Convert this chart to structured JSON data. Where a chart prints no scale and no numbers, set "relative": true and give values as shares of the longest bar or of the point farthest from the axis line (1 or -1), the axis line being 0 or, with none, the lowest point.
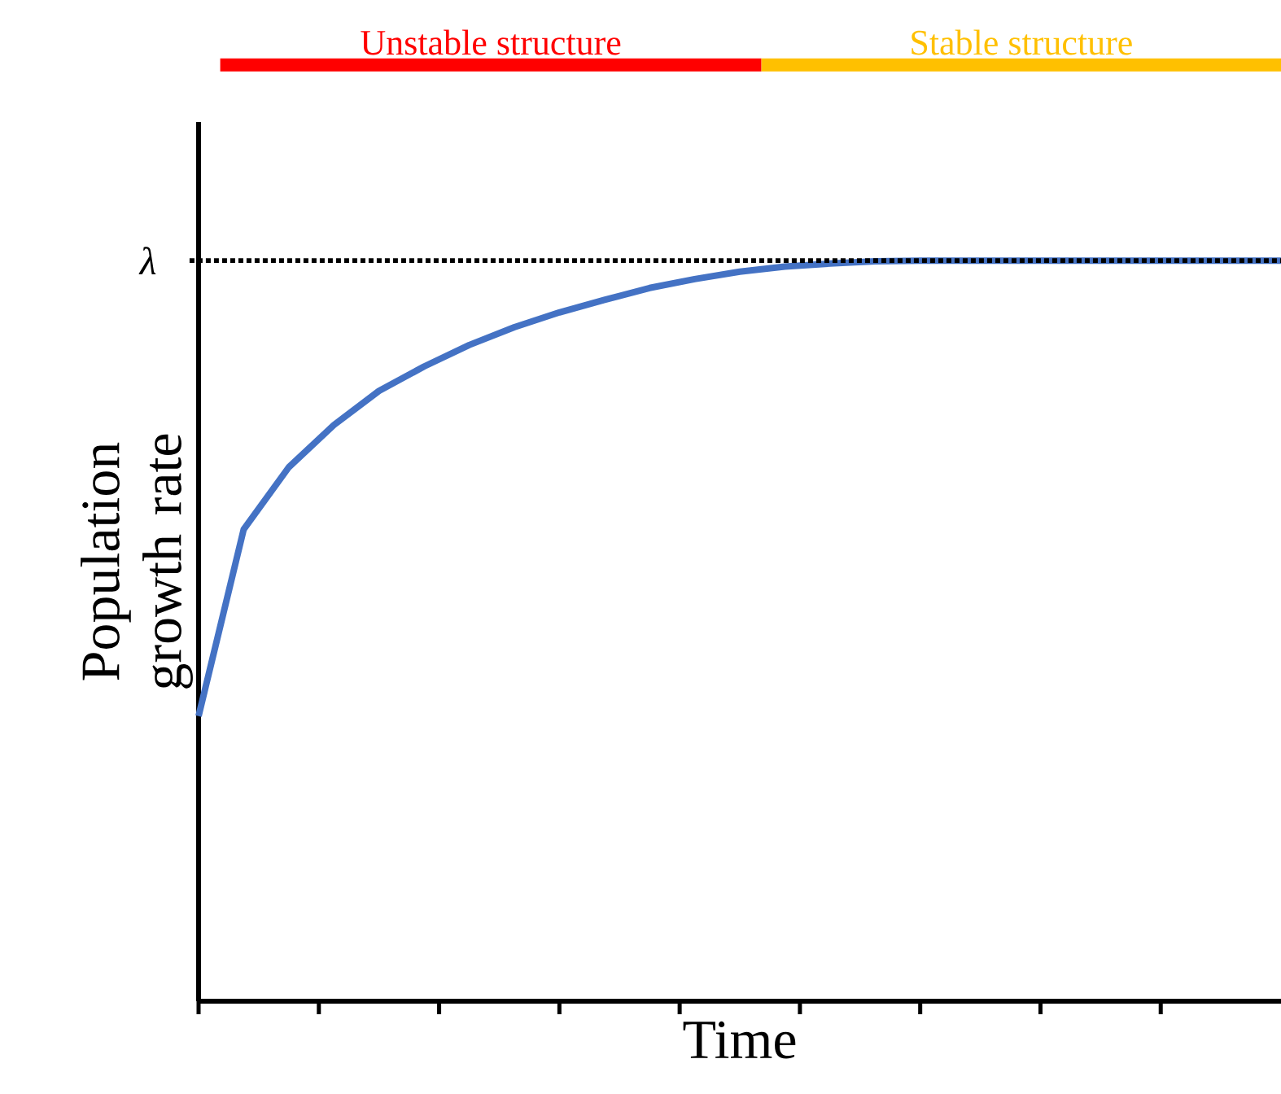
{
  "chart_data": {
    "type": "line",
    "relative": true,
    "xlabel": "Time",
    "ylabel": "Population growth rate",
    "categories": [
      null,
      null,
      null,
      null,
      null,
      null,
      null,
      null,
      null,
      null,
      null,
      null,
      null,
      null,
      null,
      null,
      null,
      null,
      null,
      null,
      null,
      null,
      null,
      null,
      null
    ],
    "series": [
      {
        "color": "#4472c4",
        "values": [
          0.385,
          0.637,
          0.721,
          0.778,
          0.824,
          0.857,
          0.886,
          0.91,
          0.93,
          0.947,
          0.963,
          0.975,
          0.985,
          0.992,
          0.996,
          0.999,
          1,
          1,
          1,
          1,
          1,
          1,
          1,
          1,
          1
        ]
      }
    ],
    "annotations": [
      "Unstable structure",
      "Stable structure"
    ],
    "ref_lines": [
      {
        "axis": "y",
        "value": 1,
        "label": "λ",
        "line_style": "dotted",
        "color": "#000000"
      }
    ],
    "grid": false,
    "marker": "none",
    "line_style": "solid"
  }
}
